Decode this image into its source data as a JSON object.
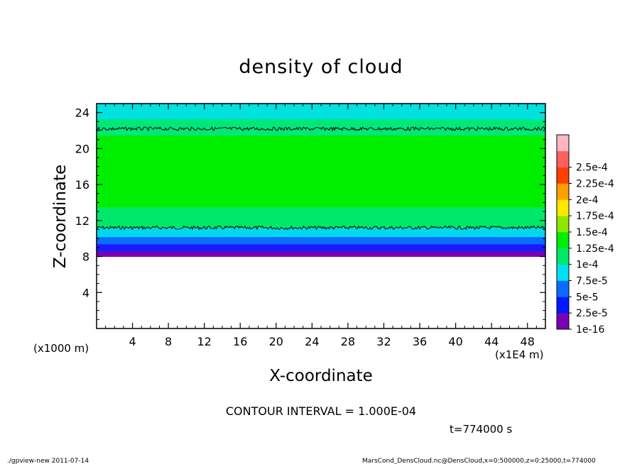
{
  "footer": {
    "left": "./gpview-new   2011-07-14",
    "right": "MarsCond_DensCloud.nc@DensCloud,x=0:500000,z=0:25000,t=774000"
  },
  "chart_data": {
    "type": "heatmap",
    "title": "density of cloud",
    "xlabel": "X-coordinate",
    "ylabel": "Z-coordinate",
    "x_unit": "(x1E4 m)",
    "y_unit": "(x1000 m)",
    "xlim": [
      0,
      50
    ],
    "ylim": [
      0,
      25
    ],
    "x_ticks": [
      "4",
      "8",
      "12",
      "16",
      "20",
      "24",
      "28",
      "32",
      "36",
      "40",
      "44",
      "48"
    ],
    "y_ticks": [
      "4",
      "8",
      "12",
      "16",
      "20",
      "24"
    ],
    "contour_interval": "CONTOUR INTERVAL = 1.000E-04",
    "time_label": "t=774000  s",
    "colorbar": {
      "labels": [
        "1e-16",
        "2.5e-5",
        "5e-5",
        "7.5e-5",
        "1e-4",
        "1.25e-4",
        "1.5e-4",
        "1.75e-4",
        "2e-4",
        "2.25e-4",
        "2.5e-4"
      ],
      "colors": [
        "#7a00b4",
        "#0018ff",
        "#0a6cff",
        "#00e1f0",
        "#00e86a",
        "#00ee00",
        "#8fe600",
        "#ffe800",
        "#ffa000",
        "#ff4000",
        "#ff6060",
        "#ffb6c1"
      ]
    },
    "field_bands": [
      {
        "z_from": 0,
        "z_to": 8,
        "color": "#ffffff"
      },
      {
        "z_from": 8,
        "z_to": 8.6,
        "color": "#7a00b4"
      },
      {
        "z_from": 8.6,
        "z_to": 9.4,
        "color": "#1a1aff"
      },
      {
        "z_from": 9.4,
        "z_to": 10.2,
        "color": "#0a6cff"
      },
      {
        "z_from": 10.2,
        "z_to": 11.2,
        "color": "#00d8f0"
      },
      {
        "z_from": 11.2,
        "z_to": 13.5,
        "color": "#00e86a"
      },
      {
        "z_from": 13.5,
        "z_to": 21.5,
        "color": "#00ee00"
      },
      {
        "z_from": 21.5,
        "z_to": 23.3,
        "color": "#00e87a"
      },
      {
        "z_from": 23.3,
        "z_to": 25,
        "color": "#00e1e0"
      }
    ],
    "contour_lines_z": [
      11.2,
      22.2
    ]
  }
}
